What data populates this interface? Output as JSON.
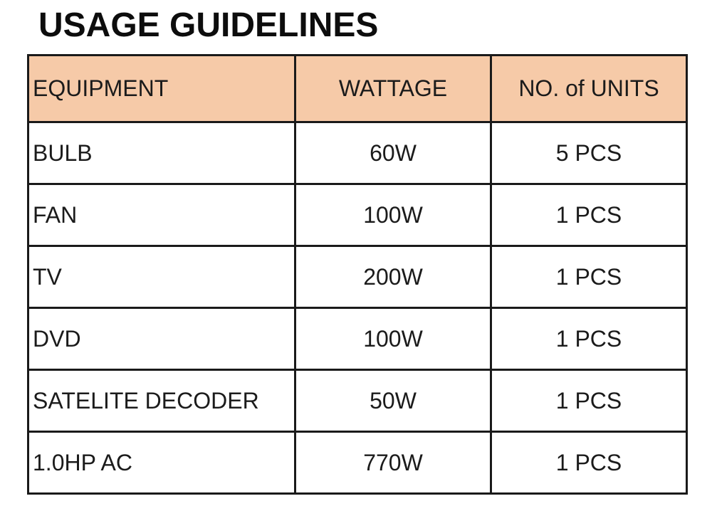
{
  "page_title": "USAGE GUIDELINES",
  "colors": {
    "header_bg": "#F6CAA8",
    "border": "#1A1A1A",
    "text": "#1B1B1B",
    "background": "#FFFFFF"
  },
  "table": {
    "columns": [
      {
        "label": "EQUIPMENT",
        "align": "left"
      },
      {
        "label": "WATTAGE",
        "align": "center"
      },
      {
        "label": "NO. of UNITS",
        "align": "center"
      }
    ],
    "rows": [
      {
        "equipment": "BULB",
        "wattage": "60W",
        "units": "5 PCS"
      },
      {
        "equipment": "FAN",
        "wattage": "100W",
        "units": "1 PCS"
      },
      {
        "equipment": "TV",
        "wattage": "200W",
        "units": "1 PCS"
      },
      {
        "equipment": "DVD",
        "wattage": "100W",
        "units": "1 PCS"
      },
      {
        "equipment": "SATELITE DECODER",
        "wattage": "50W",
        "units": "1 PCS"
      },
      {
        "equipment": "1.0HP AC",
        "wattage": "770W",
        "units": "1 PCS"
      }
    ]
  }
}
